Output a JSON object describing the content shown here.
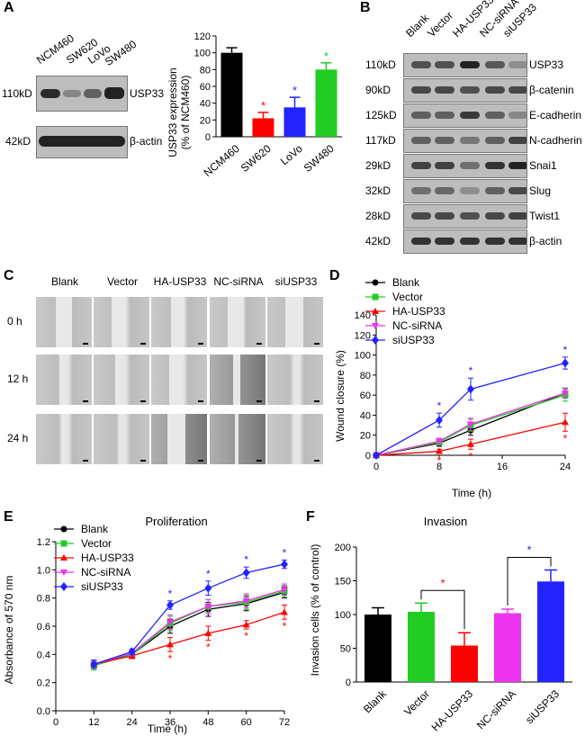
{
  "panels": {
    "A": "A",
    "B": "B",
    "C": "C",
    "D": "D",
    "E": "E",
    "F": "F"
  },
  "panelA": {
    "lanes": [
      "NCM460",
      "SW620",
      "LoVo",
      "SW480"
    ],
    "mw_top": "110kD",
    "mw_bottom": "42kD",
    "protein_top": "USP33",
    "protein_bottom": "β-actin",
    "band_intensity_top": [
      0.95,
      0.35,
      0.6,
      1.0
    ],
    "band_intensity_bottom": [
      1.0,
      1.0,
      1.0,
      1.0
    ]
  },
  "panelB": {
    "lanes": [
      "Blank",
      "Vector",
      "HA-USP33",
      "NC-siRNA",
      "siUSP33"
    ],
    "rows": [
      {
        "mw": "110kD",
        "protein": "USP33",
        "intensity": [
          0.7,
          0.7,
          1.0,
          0.65,
          0.3
        ]
      },
      {
        "mw": "90kD",
        "protein": "β-catenin",
        "intensity": [
          0.75,
          0.75,
          0.7,
          0.75,
          0.75
        ]
      },
      {
        "mw": "125kD",
        "protein": "E-cadherin",
        "intensity": [
          0.6,
          0.6,
          0.85,
          0.6,
          0.35
        ]
      },
      {
        "mw": "117kD",
        "protein": "N-cadherin",
        "intensity": [
          0.6,
          0.6,
          0.45,
          0.6,
          0.8
        ]
      },
      {
        "mw": "29kD",
        "protein": "Snai1",
        "intensity": [
          0.8,
          0.8,
          0.5,
          0.9,
          1.0
        ]
      },
      {
        "mw": "32kD",
        "protein": "Slug",
        "intensity": [
          0.5,
          0.55,
          0.3,
          0.6,
          0.75
        ]
      },
      {
        "mw": "28kD",
        "protein": "Twist1",
        "intensity": [
          0.75,
          0.75,
          0.7,
          0.75,
          0.8
        ]
      },
      {
        "mw": "42kD",
        "protein": "β-actin",
        "intensity": [
          0.9,
          0.9,
          0.9,
          0.9,
          0.9
        ]
      }
    ]
  },
  "panelC": {
    "columns": [
      "Blank",
      "Vector",
      "HA-USP33",
      "NC-siRNA",
      "siUSP33"
    ],
    "rows": [
      "0 h",
      "12 h",
      "24 h"
    ]
  },
  "chart_data": [
    {
      "id": "A-bar",
      "type": "bar",
      "categories": [
        "NCM460",
        "SW620",
        "LoVo",
        "SW480"
      ],
      "values": [
        100,
        22,
        35,
        80
      ],
      "errors": [
        6,
        7,
        12,
        8
      ],
      "colors": [
        "#000000",
        "#ff0000",
        "#2323ff",
        "#22cc22"
      ],
      "significance": [
        "",
        "*",
        "*",
        "*"
      ],
      "ylabel": "USP33 expression (% of NCM460)",
      "ylim": [
        0,
        120
      ],
      "yticks": [
        0,
        20,
        40,
        60,
        80,
        100,
        120
      ]
    },
    {
      "id": "D-line",
      "type": "line",
      "xlabel": "Time (h)",
      "ylabel": "Wound closure (%)",
      "xlim": [
        0,
        24
      ],
      "ylim": [
        0,
        140
      ],
      "xticks": [
        0,
        8,
        16,
        24
      ],
      "yticks": [
        0,
        20,
        40,
        60,
        80,
        100,
        120,
        140
      ],
      "x": [
        0,
        8,
        12,
        24
      ],
      "series": [
        {
          "name": "Blank",
          "color": "#000000",
          "marker": "circle",
          "values": [
            0,
            12,
            25,
            62
          ],
          "errors": [
            0,
            3,
            5,
            5
          ]
        },
        {
          "name": "Vector",
          "color": "#22cc22",
          "marker": "square",
          "values": [
            0,
            13,
            30,
            60
          ],
          "errors": [
            0,
            3,
            6,
            6
          ]
        },
        {
          "name": "HA-USP33",
          "color": "#ff0000",
          "marker": "triangle",
          "values": [
            0,
            4,
            11,
            33
          ],
          "errors": [
            0,
            2,
            5,
            9
          ]
        },
        {
          "name": "NC-siRNA",
          "color": "#ee33ee",
          "marker": "triangle-down",
          "values": [
            0,
            14,
            31,
            62
          ],
          "errors": [
            0,
            3,
            6,
            5
          ]
        },
        {
          "name": "siUSP33",
          "color": "#2323ff",
          "marker": "diamond",
          "values": [
            0,
            35,
            66,
            92
          ],
          "errors": [
            0,
            7,
            11,
            6
          ]
        }
      ],
      "sig_above": [
        "",
        "*",
        "*",
        "*"
      ],
      "sig_below": [
        "",
        "*",
        "*",
        "*"
      ]
    },
    {
      "id": "E-line",
      "type": "line",
      "title": "Proliferation",
      "xlabel": "Time (h)",
      "ylabel": "Absorbance of 570 nm",
      "xlim": [
        0,
        72
      ],
      "ylim": [
        0.0,
        1.2
      ],
      "xticks": [
        0,
        12,
        24,
        36,
        48,
        60,
        72
      ],
      "yticks": [
        0.0,
        0.2,
        0.4,
        0.6,
        0.8,
        1.0,
        1.2
      ],
      "x": [
        12,
        24,
        36,
        48,
        60,
        72
      ],
      "series": [
        {
          "name": "Blank",
          "color": "#000000",
          "marker": "circle",
          "values": [
            0.33,
            0.4,
            0.6,
            0.72,
            0.76,
            0.84
          ],
          "errors": [
            0.03,
            0.02,
            0.05,
            0.05,
            0.05,
            0.04
          ]
        },
        {
          "name": "Vector",
          "color": "#22cc22",
          "marker": "square",
          "values": [
            0.32,
            0.4,
            0.62,
            0.74,
            0.77,
            0.85
          ],
          "errors": [
            0.03,
            0.02,
            0.05,
            0.05,
            0.05,
            0.04
          ]
        },
        {
          "name": "HA-USP33",
          "color": "#ff0000",
          "marker": "triangle",
          "values": [
            0.33,
            0.39,
            0.47,
            0.55,
            0.61,
            0.7
          ],
          "errors": [
            0.03,
            0.02,
            0.05,
            0.05,
            0.03,
            0.05
          ]
        },
        {
          "name": "NC-siRNA",
          "color": "#ee33ee",
          "marker": "triangle-down",
          "values": [
            0.33,
            0.41,
            0.63,
            0.74,
            0.78,
            0.86
          ],
          "errors": [
            0.03,
            0.02,
            0.05,
            0.05,
            0.05,
            0.04
          ]
        },
        {
          "name": "siUSP33",
          "color": "#2323ff",
          "marker": "diamond",
          "values": [
            0.33,
            0.42,
            0.75,
            0.87,
            0.98,
            1.04
          ],
          "errors": [
            0.03,
            0.02,
            0.03,
            0.05,
            0.04,
            0.03
          ]
        }
      ],
      "sig_above": [
        "",
        "",
        "*",
        "*",
        "*",
        "*"
      ],
      "sig_below": [
        "",
        "",
        "*",
        "*",
        "*",
        "*"
      ]
    },
    {
      "id": "F-bar",
      "type": "bar",
      "title": "Invasion",
      "categories": [
        "Blank",
        "Vector",
        "HA-USP33",
        "NC-siRNA",
        "siUSP33"
      ],
      "values": [
        100,
        104,
        54,
        102,
        149
      ],
      "errors": [
        10,
        13,
        19,
        6,
        17
      ],
      "colors": [
        "#000000",
        "#22cc22",
        "#ff0000",
        "#ee33ee",
        "#2323ff"
      ],
      "ylabel": "Invasion cells (% of control)",
      "ylim": [
        0,
        200
      ],
      "yticks": [
        0,
        50,
        100,
        150,
        200
      ],
      "brackets": [
        {
          "from": 1,
          "to": 2,
          "label": "*",
          "color": "#ff0000"
        },
        {
          "from": 3,
          "to": 4,
          "label": "*",
          "color": "#2323ff"
        }
      ]
    }
  ]
}
